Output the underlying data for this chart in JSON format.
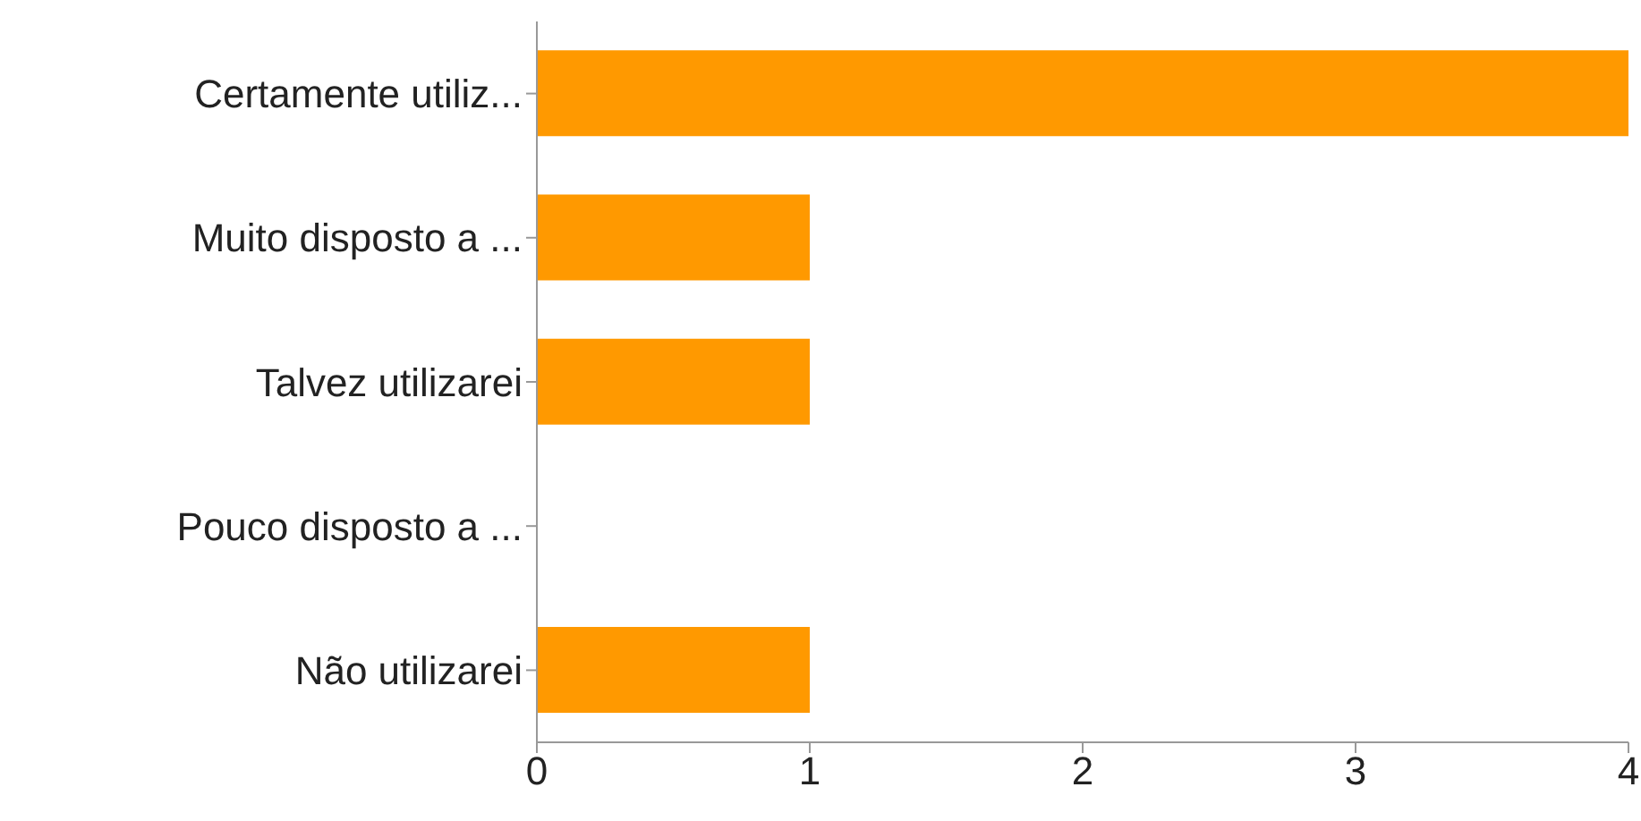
{
  "chart_data": {
    "type": "bar",
    "orientation": "horizontal",
    "categories": [
      "Certamente utiliz...",
      "Muito disposto a ...",
      "Talvez utilizarei",
      "Pouco disposto a ...",
      "Não utilizarei"
    ],
    "values": [
      4,
      1,
      1,
      0,
      1
    ],
    "color": "#ff9900",
    "xlim": [
      0,
      4
    ],
    "xticks": [
      0,
      1,
      2,
      3,
      4
    ],
    "grid": false
  }
}
